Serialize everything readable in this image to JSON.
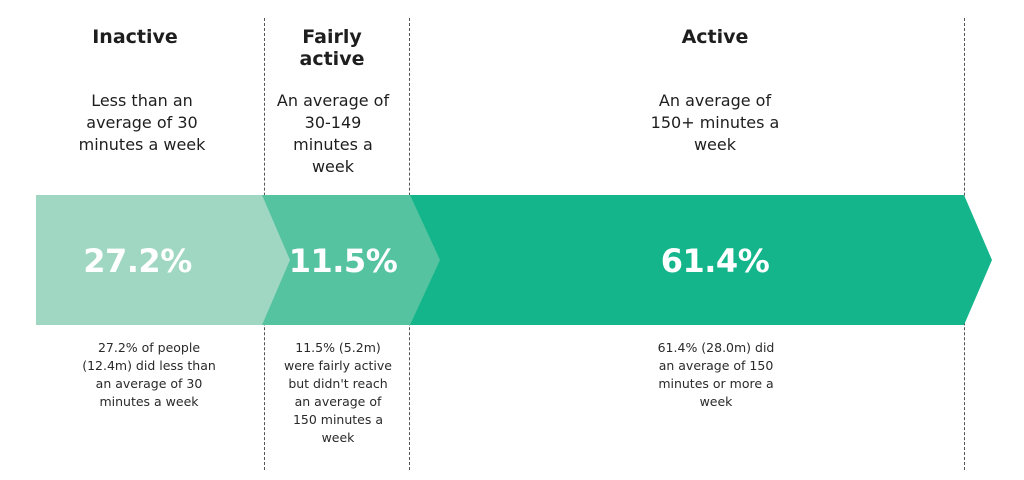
{
  "segments": [
    {
      "heading": "Inactive",
      "description": "Less than an average of 30 minutes a week",
      "percent_label": "27.2%",
      "percent_value": 27.2,
      "note": "27.2% of people (12.4m) did less than an average of 30 minutes a week",
      "color": "#9fd7c3"
    },
    {
      "heading": "Fairly active",
      "description": "An average of 30-149 minutes a week",
      "percent_label": "11.5%",
      "percent_value": 11.5,
      "note": "11.5% (5.2m) were fairly active but didn't reach an average of 150 minutes a week",
      "color": "#55c3a0"
    },
    {
      "heading": "Active",
      "description": "An average of 150+ minutes a week",
      "percent_label": "61.4%",
      "percent_value": 61.4,
      "note": "61.4% (28.0m) did an average of 150 minutes or more a week",
      "color": "#14b58b"
    }
  ]
}
